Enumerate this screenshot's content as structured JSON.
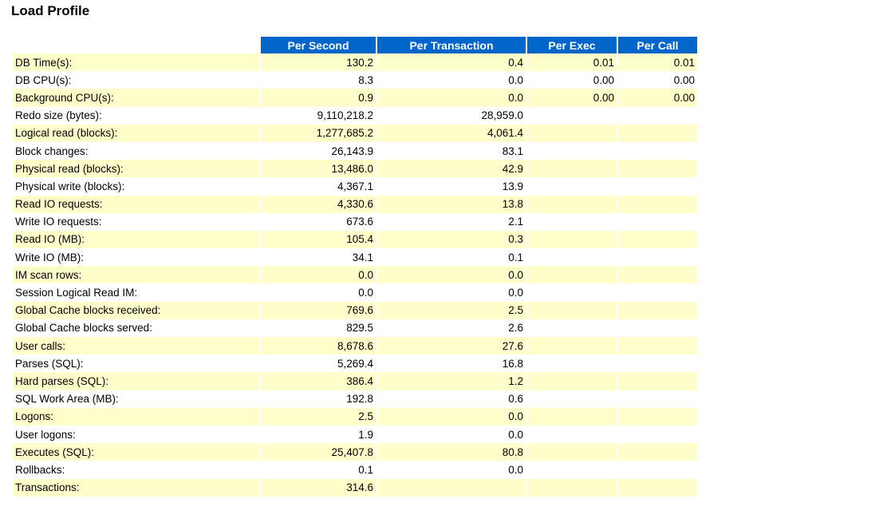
{
  "page_title": "Load Profile",
  "columns": [
    "Per Second",
    "Per Transaction",
    "Per Exec",
    "Per Call"
  ],
  "rows": [
    {
      "label": "DB Time(s):",
      "per_second": "130.2",
      "per_transaction": "0.4",
      "per_exec": "0.01",
      "per_call": "0.01"
    },
    {
      "label": "DB CPU(s):",
      "per_second": "8.3",
      "per_transaction": "0.0",
      "per_exec": "0.00",
      "per_call": "0.00"
    },
    {
      "label": "Background CPU(s):",
      "per_second": "0.9",
      "per_transaction": "0.0",
      "per_exec": "0.00",
      "per_call": "0.00"
    },
    {
      "label": "Redo size (bytes):",
      "per_second": "9,110,218.2",
      "per_transaction": "28,959.0",
      "per_exec": "",
      "per_call": ""
    },
    {
      "label": "Logical read (blocks):",
      "per_second": "1,277,685.2",
      "per_transaction": "4,061.4",
      "per_exec": "",
      "per_call": ""
    },
    {
      "label": "Block changes:",
      "per_second": "26,143.9",
      "per_transaction": "83.1",
      "per_exec": "",
      "per_call": ""
    },
    {
      "label": "Physical read (blocks):",
      "per_second": "13,486.0",
      "per_transaction": "42.9",
      "per_exec": "",
      "per_call": ""
    },
    {
      "label": "Physical write (blocks):",
      "per_second": "4,367.1",
      "per_transaction": "13.9",
      "per_exec": "",
      "per_call": ""
    },
    {
      "label": "Read IO requests:",
      "per_second": "4,330.6",
      "per_transaction": "13.8",
      "per_exec": "",
      "per_call": ""
    },
    {
      "label": "Write IO requests:",
      "per_second": "673.6",
      "per_transaction": "2.1",
      "per_exec": "",
      "per_call": ""
    },
    {
      "label": "Read IO (MB):",
      "per_second": "105.4",
      "per_transaction": "0.3",
      "per_exec": "",
      "per_call": ""
    },
    {
      "label": "Write IO (MB):",
      "per_second": "34.1",
      "per_transaction": "0.1",
      "per_exec": "",
      "per_call": ""
    },
    {
      "label": "IM scan rows:",
      "per_second": "0.0",
      "per_transaction": "0.0",
      "per_exec": "",
      "per_call": ""
    },
    {
      "label": "Session Logical Read IM:",
      "per_second": "0.0",
      "per_transaction": "0.0",
      "per_exec": "",
      "per_call": ""
    },
    {
      "label": "Global Cache blocks received:",
      "per_second": "769.6",
      "per_transaction": "2.5",
      "per_exec": "",
      "per_call": ""
    },
    {
      "label": "Global Cache blocks served:",
      "per_second": "829.5",
      "per_transaction": "2.6",
      "per_exec": "",
      "per_call": ""
    },
    {
      "label": "User calls:",
      "per_second": "8,678.6",
      "per_transaction": "27.6",
      "per_exec": "",
      "per_call": ""
    },
    {
      "label": "Parses (SQL):",
      "per_second": "5,269.4",
      "per_transaction": "16.8",
      "per_exec": "",
      "per_call": ""
    },
    {
      "label": "Hard parses (SQL):",
      "per_second": "386.4",
      "per_transaction": "1.2",
      "per_exec": "",
      "per_call": ""
    },
    {
      "label": "SQL Work Area (MB):",
      "per_second": "192.8",
      "per_transaction": "0.6",
      "per_exec": "",
      "per_call": ""
    },
    {
      "label": "Logons:",
      "per_second": "2.5",
      "per_transaction": "0.0",
      "per_exec": "",
      "per_call": ""
    },
    {
      "label": "User logons:",
      "per_second": "1.9",
      "per_transaction": "0.0",
      "per_exec": "",
      "per_call": ""
    },
    {
      "label": "Executes (SQL):",
      "per_second": "25,407.8",
      "per_transaction": "80.8",
      "per_exec": "",
      "per_call": ""
    },
    {
      "label": "Rollbacks:",
      "per_second": "0.1",
      "per_transaction": "0.0",
      "per_exec": "",
      "per_call": ""
    },
    {
      "label": "Transactions:",
      "per_second": "314.6",
      "per_transaction": "",
      "per_exec": "",
      "per_call": ""
    }
  ],
  "colors": {
    "header_bg": "#0066cc",
    "header_text": "#ffffff",
    "stripe_bg": "#ffffcc"
  }
}
